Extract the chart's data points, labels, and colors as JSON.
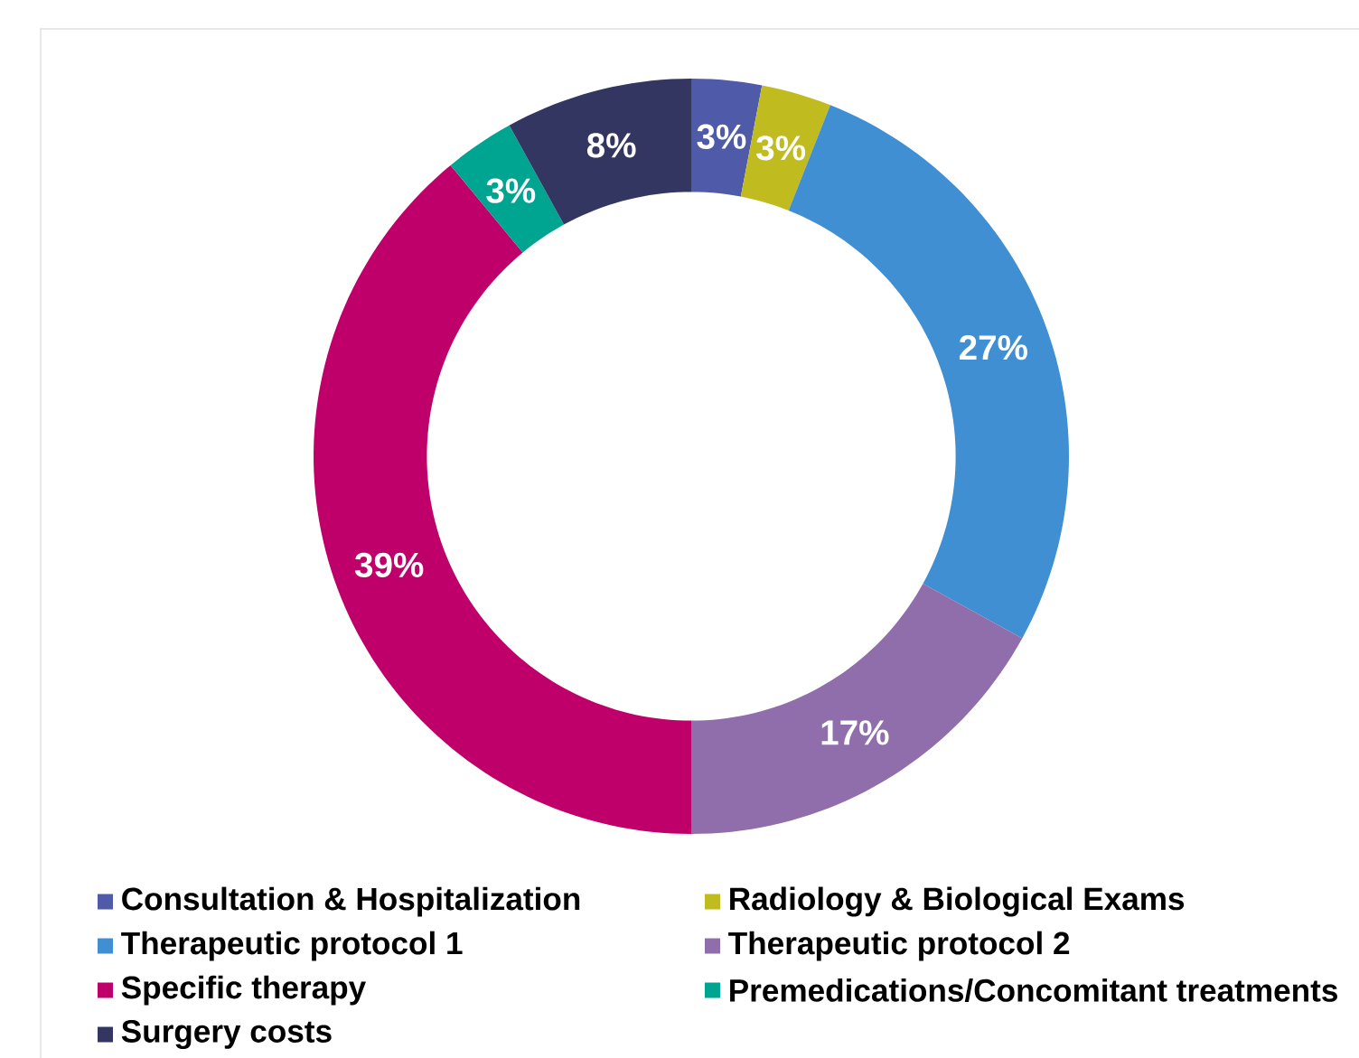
{
  "chart_data": {
    "type": "donut",
    "categories": [
      "Consultation  & Hospitalization",
      "Radiology & Biological Exams",
      "Therapeutic protocol 1",
      "Therapeutic protocol 2",
      "Specific therapy",
      "Premedications/Concomitant treatments",
      "Surgery costs"
    ],
    "values": [
      3,
      3,
      27,
      17,
      39,
      3,
      8
    ],
    "value_labels": [
      "3%",
      "3%",
      "27%",
      "17%",
      "39%",
      "3%",
      "8%"
    ],
    "colors": [
      "#4f5ba8",
      "#c0bb1e",
      "#3f8fd2",
      "#8f6eab",
      "#c0006a",
      "#00a591",
      "#333660"
    ],
    "legend": "bottom"
  }
}
